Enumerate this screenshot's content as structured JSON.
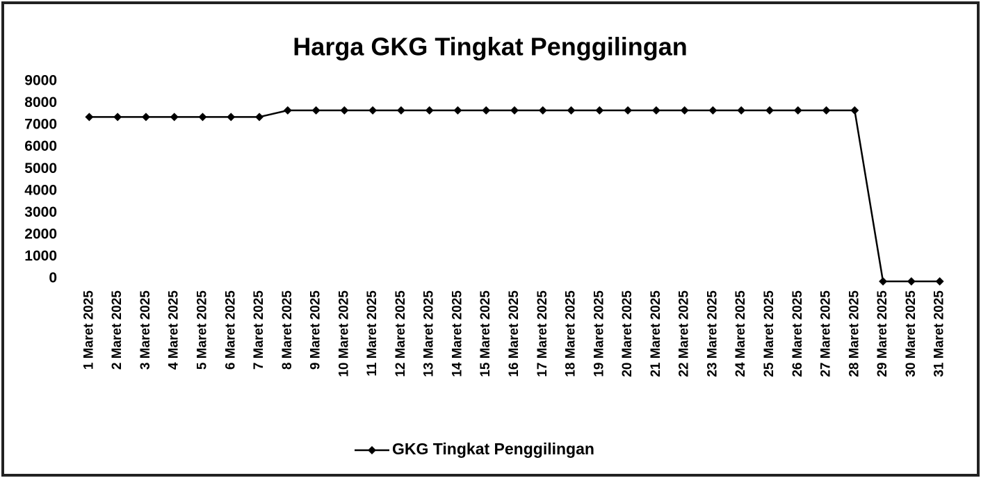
{
  "chart_data": {
    "type": "line",
    "title": "Harga GKG Tingkat Penggilingan",
    "categories": [
      "1 Maret 2025",
      "2 Maret 2025",
      "3 Maret 2025",
      "4 Maret 2025",
      "5 Maret 2025",
      "6 Maret 2025",
      "7 Maret 2025",
      "8 Maret 2025",
      "9 Maret 2025",
      "10 Maret 2025",
      "11 Maret 2025",
      "12 Maret 2025",
      "13 Maret 2025",
      "14 Maret 2025",
      "15 Maret 2025",
      "16 Maret 2025",
      "17 Maret 2025",
      "18 Maret 2025",
      "19 Maret 2025",
      "20 Maret 2025",
      "21 Maret 2025",
      "22 Maret 2025",
      "23 Maret 2025",
      "24 Maret 2025",
      "25 Maret 2025",
      "26 Maret 2025",
      "27 Maret 2025",
      "28 Maret 2025",
      "29 Maret 2025",
      "30 Maret 2025",
      "31 Maret 2025"
    ],
    "series": [
      {
        "name": "GKG Tingkat Penggilingan",
        "color": "#000000",
        "values": [
          7500,
          7500,
          7500,
          7500,
          7500,
          7500,
          7500,
          7800,
          7800,
          7800,
          7800,
          7800,
          7800,
          7800,
          7800,
          7800,
          7800,
          7800,
          7800,
          7800,
          7800,
          7800,
          7800,
          7800,
          7800,
          7800,
          7800,
          7800,
          0,
          0,
          0
        ]
      }
    ],
    "ylim": [
      0,
      9000
    ],
    "yticks": [
      0,
      1000,
      2000,
      3000,
      4000,
      5000,
      6000,
      7000,
      8000,
      9000
    ],
    "grid": false,
    "legend": "bottom"
  }
}
